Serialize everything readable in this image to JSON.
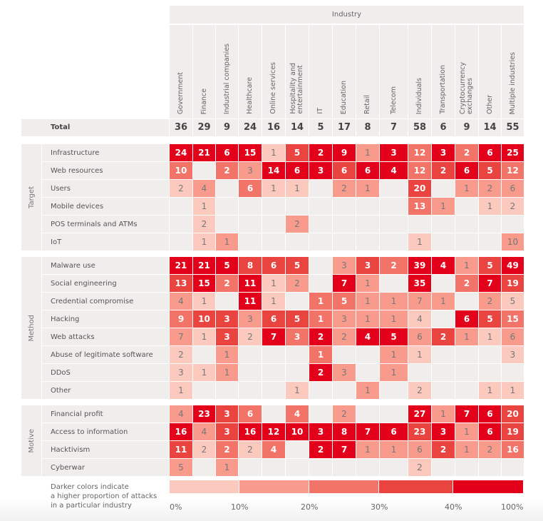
{
  "header": {
    "industry_title": "Industry"
  },
  "chart_data": {
    "type": "heatmap",
    "title": "",
    "xlabel": "Industry",
    "columns": [
      "Government",
      "Finance",
      "Industrial companies",
      "Healthcare",
      "Online services",
      "Hospitality and\nentertainment",
      "IT",
      "Education",
      "Retail",
      "Telecom",
      "Individuals",
      "Transportation",
      "Cryptocurrency\nexchanges",
      "Other",
      "Multiple industries"
    ],
    "total_label": "Total",
    "totals": [
      36,
      29,
      9,
      24,
      16,
      14,
      5,
      17,
      8,
      7,
      58,
      6,
      9,
      14,
      55
    ],
    "groups": [
      {
        "name": "Target",
        "rows": [
          {
            "label": "Infrastructure",
            "values": [
              24,
              21,
              6,
              15,
              1,
              5,
              2,
              9,
              1,
              3,
              12,
              3,
              2,
              6,
              25
            ]
          },
          {
            "label": "Web resources",
            "values": [
              10,
              null,
              2,
              3,
              14,
              6,
              3,
              6,
              6,
              4,
              12,
              2,
              6,
              5,
              12
            ]
          },
          {
            "label": "Users",
            "values": [
              2,
              4,
              null,
              6,
              1,
              1,
              null,
              2,
              1,
              null,
              20,
              null,
              1,
              2,
              6
            ]
          },
          {
            "label": "Mobile devices",
            "values": [
              null,
              1,
              null,
              null,
              null,
              null,
              null,
              null,
              null,
              null,
              13,
              1,
              null,
              1,
              2
            ]
          },
          {
            "label": "POS terminals and ATMs",
            "values": [
              null,
              2,
              null,
              null,
              null,
              2,
              null,
              null,
              null,
              null,
              null,
              null,
              null,
              null,
              null
            ]
          },
          {
            "label": "IoT",
            "values": [
              null,
              1,
              1,
              null,
              null,
              null,
              null,
              null,
              null,
              null,
              1,
              null,
              null,
              null,
              10
            ]
          }
        ]
      },
      {
        "name": "Method",
        "rows": [
          {
            "label": "Malware use",
            "values": [
              21,
              21,
              5,
              8,
              6,
              5,
              null,
              3,
              3,
              2,
              39,
              4,
              1,
              5,
              49
            ]
          },
          {
            "label": "Social engineering",
            "values": [
              13,
              15,
              2,
              11,
              1,
              2,
              null,
              7,
              1,
              null,
              35,
              null,
              2,
              7,
              19
            ]
          },
          {
            "label": "Credential compromise",
            "values": [
              4,
              1,
              null,
              11,
              1,
              null,
              1,
              5,
              1,
              1,
              7,
              1,
              null,
              2,
              5
            ]
          },
          {
            "label": "Hacking",
            "values": [
              9,
              10,
              3,
              3,
              6,
              5,
              1,
              3,
              1,
              1,
              4,
              null,
              6,
              5,
              15
            ]
          },
          {
            "label": "Web attacks",
            "values": [
              7,
              1,
              3,
              2,
              7,
              3,
              2,
              2,
              4,
              5,
              6,
              2,
              1,
              1,
              6
            ]
          },
          {
            "label": "Abuse of legitimate software",
            "values": [
              2,
              null,
              1,
              null,
              null,
              null,
              1,
              null,
              null,
              1,
              1,
              null,
              null,
              null,
              3
            ]
          },
          {
            "label": "DDoS",
            "values": [
              3,
              1,
              1,
              null,
              null,
              null,
              2,
              3,
              null,
              1,
              null,
              null,
              null,
              null,
              null
            ]
          },
          {
            "label": "Other",
            "values": [
              1,
              null,
              null,
              null,
              null,
              1,
              null,
              null,
              1,
              null,
              2,
              null,
              null,
              1,
              1
            ]
          }
        ]
      },
      {
        "name": "Motive",
        "rows": [
          {
            "label": "Financial profit",
            "values": [
              4,
              23,
              3,
              6,
              null,
              4,
              null,
              2,
              null,
              null,
              27,
              1,
              7,
              6,
              20
            ]
          },
          {
            "label": "Access to information",
            "values": [
              16,
              4,
              3,
              16,
              12,
              10,
              3,
              8,
              7,
              6,
              23,
              3,
              1,
              6,
              19
            ]
          },
          {
            "label": "Hacktivism",
            "values": [
              11,
              2,
              2,
              2,
              4,
              null,
              2,
              7,
              1,
              1,
              6,
              2,
              1,
              2,
              16
            ]
          },
          {
            "label": "Cyberwar",
            "values": [
              5,
              null,
              1,
              null,
              null,
              null,
              null,
              null,
              null,
              null,
              2,
              null,
              null,
              null,
              null
            ]
          }
        ]
      }
    ],
    "legend": {
      "text": "Darker colors indicate\na higher proportion of attacks\nin a particular industry",
      "ticks": [
        "0%",
        "10%",
        "20%",
        "30%",
        "40%",
        "100%"
      ],
      "thresholds": [
        0,
        10,
        20,
        30,
        40,
        100
      ],
      "colors": [
        "#fcc9bf",
        "#f89b8c",
        "#f27367",
        "#ea4440",
        "#e3001b"
      ]
    },
    "empty_color": "#f0eded"
  }
}
